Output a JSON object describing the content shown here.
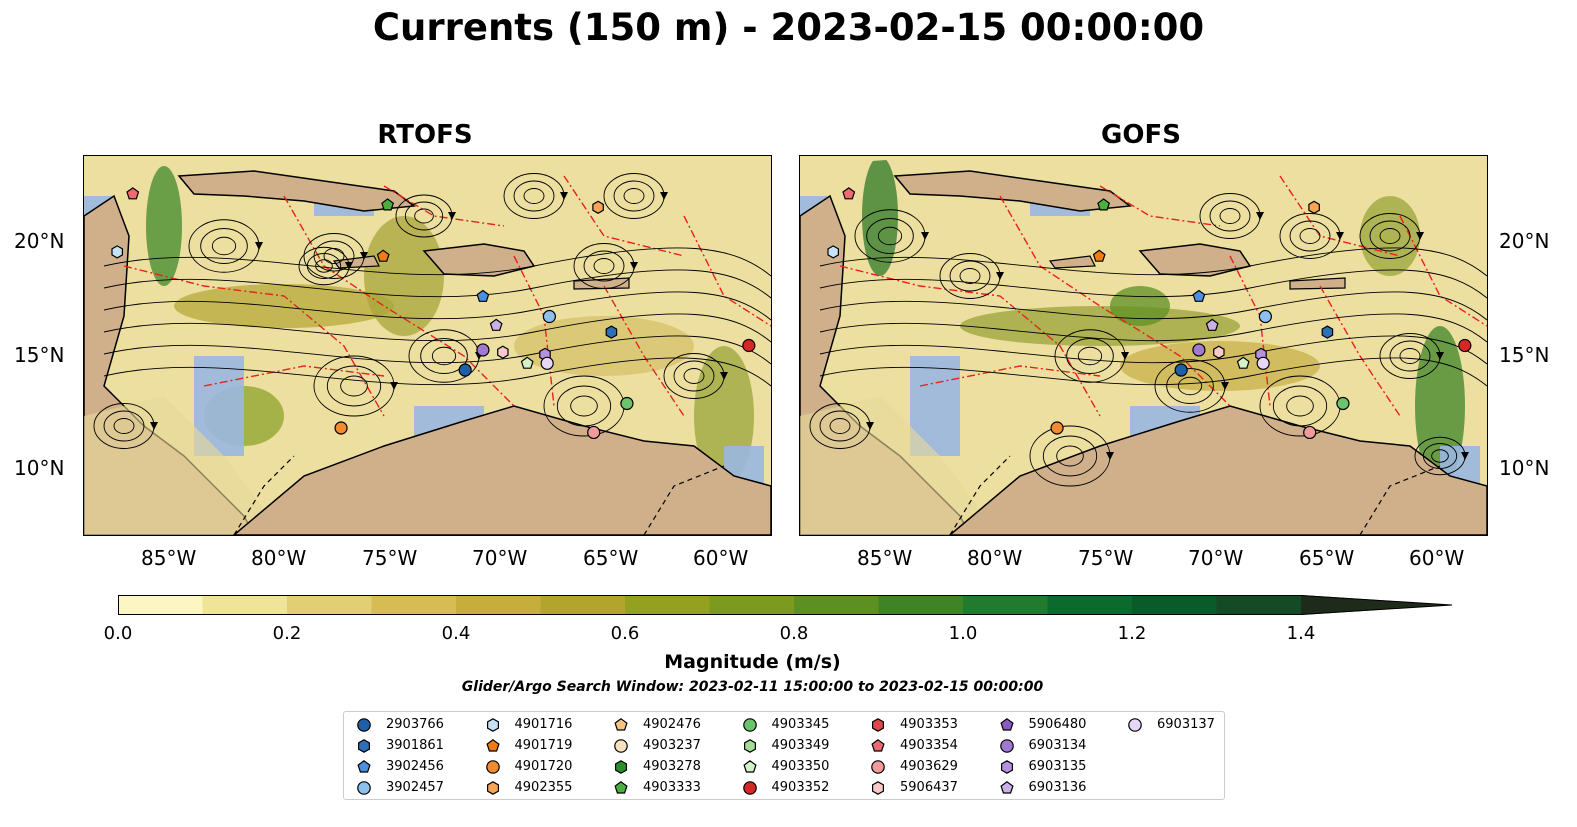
{
  "title": "Currents (150 m) - 2023-02-15 00:00:00",
  "panels": [
    {
      "title": "RTOFS"
    },
    {
      "title": "GOFS"
    }
  ],
  "axes": {
    "x_ticks": [
      "85°W",
      "80°W",
      "75°W",
      "70°W",
      "65°W",
      "60°W"
    ],
    "y_ticks": [
      "20°N",
      "15°N",
      "10°N"
    ]
  },
  "colorbar": {
    "label": "Magnitude (m/s)",
    "ticks": [
      "0.0",
      "0.2",
      "0.4",
      "0.6",
      "0.8",
      "1.0",
      "1.2",
      "1.4"
    ],
    "colors": [
      "#fdf6c3",
      "#f0e39a",
      "#e3cf73",
      "#d6bc52",
      "#c7ad3b",
      "#b3a52b",
      "#94a11e",
      "#7b9a1e",
      "#5d8f22",
      "#3e8427",
      "#217a2d",
      "#0d6a2e",
      "#0b5a2a",
      "#154a26",
      "#1c3b21",
      "#1e2b1a"
    ]
  },
  "search_window": "Glider/Argo Search Window: 2023-02-11 15:00:00 to 2023-02-15 00:00:00",
  "legend": [
    {
      "id": "2903766",
      "marker": "circle",
      "color": "#1f5fa8"
    },
    {
      "id": "3901861",
      "marker": "hexagon",
      "color": "#2f6fb8"
    },
    {
      "id": "3902456",
      "marker": "pentagon",
      "color": "#4b8fe0"
    },
    {
      "id": "3902457",
      "marker": "circle",
      "color": "#8dc0ee"
    },
    {
      "id": "4901716",
      "marker": "hexagon",
      "color": "#c6e2f7"
    },
    {
      "id": "4901719",
      "marker": "pentagon",
      "color": "#f07b16"
    },
    {
      "id": "4901720",
      "marker": "circle",
      "color": "#f28a2f"
    },
    {
      "id": "4902355",
      "marker": "hexagon",
      "color": "#f6a556"
    },
    {
      "id": "4902476",
      "marker": "pentagon",
      "color": "#f8c384"
    },
    {
      "id": "4903237",
      "marker": "circle",
      "color": "#fbe0c0"
    },
    {
      "id": "4903278",
      "marker": "hexagon",
      "color": "#2a8f2a"
    },
    {
      "id": "4903333",
      "marker": "pentagon",
      "color": "#4aaf3f"
    },
    {
      "id": "4903345",
      "marker": "circle",
      "color": "#6cc46a"
    },
    {
      "id": "4903349",
      "marker": "hexagon",
      "color": "#a2dc95"
    },
    {
      "id": "4903350",
      "marker": "pentagon",
      "color": "#d4f2c8"
    },
    {
      "id": "4903352",
      "marker": "circle",
      "color": "#d62728"
    },
    {
      "id": "4903353",
      "marker": "hexagon",
      "color": "#e0464a"
    },
    {
      "id": "4903354",
      "marker": "pentagon",
      "color": "#ec6b70"
    },
    {
      "id": "4903629",
      "marker": "circle",
      "color": "#f29a9a"
    },
    {
      "id": "5906437",
      "marker": "hexagon",
      "color": "#f9c8c8"
    },
    {
      "id": "5906480",
      "marker": "pentagon",
      "color": "#8a5cc0"
    },
    {
      "id": "6903134",
      "marker": "circle",
      "color": "#a07ad0"
    },
    {
      "id": "6903135",
      "marker": "hexagon",
      "color": "#b592de"
    },
    {
      "id": "6903136",
      "marker": "pentagon",
      "color": "#cbb0ea"
    },
    {
      "id": "6903137",
      "marker": "circle",
      "color": "#e6d6f7"
    }
  ],
  "floats": [
    {
      "id": "4903354",
      "lon": -86.8,
      "lat": 22.3
    },
    {
      "id": "4901716",
      "lon": -87.5,
      "lat": 19.7
    },
    {
      "id": "4903333",
      "lon": -75.3,
      "lat": 21.8
    },
    {
      "id": "4902355",
      "lon": -65.8,
      "lat": 21.7
    },
    {
      "id": "4901719",
      "lon": -75.5,
      "lat": 19.5
    },
    {
      "id": "3902456",
      "lon": -71.0,
      "lat": 17.7
    },
    {
      "id": "6903136",
      "lon": -70.4,
      "lat": 16.4
    },
    {
      "id": "3902457",
      "lon": -68.0,
      "lat": 16.8
    },
    {
      "id": "3901861",
      "lon": -65.2,
      "lat": 16.1
    },
    {
      "id": "4903352",
      "lon": -59.0,
      "lat": 15.5
    },
    {
      "id": "6903134",
      "lon": -71.0,
      "lat": 15.3
    },
    {
      "id": "5906437",
      "lon": -70.1,
      "lat": 15.2
    },
    {
      "id": "4903350",
      "lon": -69.0,
      "lat": 14.7
    },
    {
      "id": "6903135",
      "lon": -68.2,
      "lat": 15.1
    },
    {
      "id": "6903137",
      "lon": -68.1,
      "lat": 14.7
    },
    {
      "id": "2903766",
      "lon": -71.8,
      "lat": 14.4
    },
    {
      "id": "4903345",
      "lon": -64.5,
      "lat": 12.9
    },
    {
      "id": "4901720",
      "lon": -77.4,
      "lat": 11.8
    },
    {
      "id": "4903629",
      "lon": -66.0,
      "lat": 11.6
    }
  ],
  "map_extent": {
    "lon": [
      -89,
      -58
    ],
    "lat": [
      7,
      24
    ]
  }
}
